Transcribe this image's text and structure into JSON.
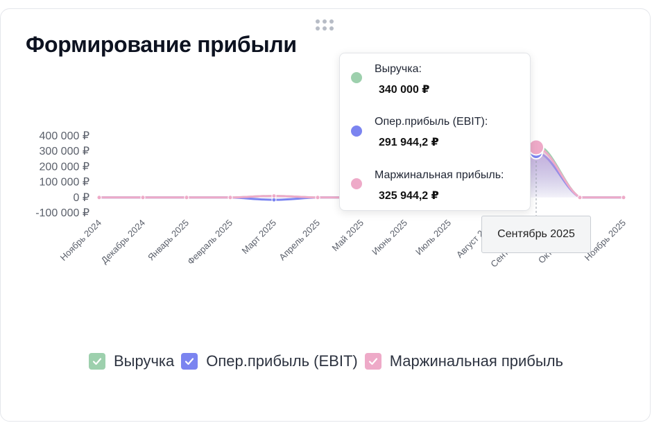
{
  "widget": {
    "title": "Формирование прибыли",
    "drag_handle_icon": "drag-dots-icon"
  },
  "colors": {
    "revenue": "#9dd0ad",
    "ebit": "#7b84f0",
    "margin": "#eeaac8",
    "axis_text": "#5b606b"
  },
  "tooltip": {
    "items": [
      {
        "name": "Выручка:",
        "value": "340 000 ₽",
        "color": "#9dd0ad"
      },
      {
        "name": "Опер.прибыль (EBIT):",
        "value": "291 944,2 ₽",
        "color": "#7b84f0"
      },
      {
        "name": "Маржинальная прибыль:",
        "value": "325 944,2 ₽",
        "color": "#eeaac8"
      }
    ],
    "x_label": "Сентябрь 2025"
  },
  "legend": [
    {
      "label": "Выручка",
      "color": "#9dd0ad",
      "checked": true
    },
    {
      "label": "Опер.прибыль (EBIT)",
      "color": "#7b84f0",
      "checked": true
    },
    {
      "label": "Маржинальная прибыль",
      "color": "#eeaac8",
      "checked": true
    }
  ],
  "chart_data": {
    "type": "area",
    "categories": [
      "Ноябрь 2024",
      "Декабрь 2024",
      "Январь 2025",
      "Февраль 2025",
      "Март 2025",
      "Апрель 2025",
      "Май 2025",
      "Июнь 2025",
      "Июль 2025",
      "Август 2025",
      "Сентябрь 2025",
      "Октябрь 2025",
      "Ноябрь 2025"
    ],
    "series": [
      {
        "name": "Выручка",
        "values": [
          0,
          0,
          0,
          0,
          10000,
          0,
          0,
          0,
          0,
          0,
          340000,
          0,
          0
        ]
      },
      {
        "name": "Опер.прибыль (EBIT)",
        "values": [
          0,
          0,
          0,
          0,
          -15000,
          0,
          0,
          0,
          0,
          0,
          291944.2,
          0,
          0
        ]
      },
      {
        "name": "Маржинальная прибыль",
        "values": [
          0,
          0,
          0,
          0,
          10000,
          0,
          0,
          0,
          0,
          0,
          325944.2,
          0,
          0
        ]
      }
    ],
    "y_ticks": [
      "400 000 ₽",
      "300 000 ₽",
      "200 000 ₽",
      "100 000 ₽",
      "0 ₽",
      "-100 000 ₽"
    ],
    "y_tick_values": [
      400000,
      300000,
      200000,
      100000,
      0,
      -100000
    ],
    "ylim": [
      -100000,
      400000
    ],
    "highlighted_category": "Сентябрь 2025",
    "grid": false,
    "legend_position": "bottom"
  }
}
